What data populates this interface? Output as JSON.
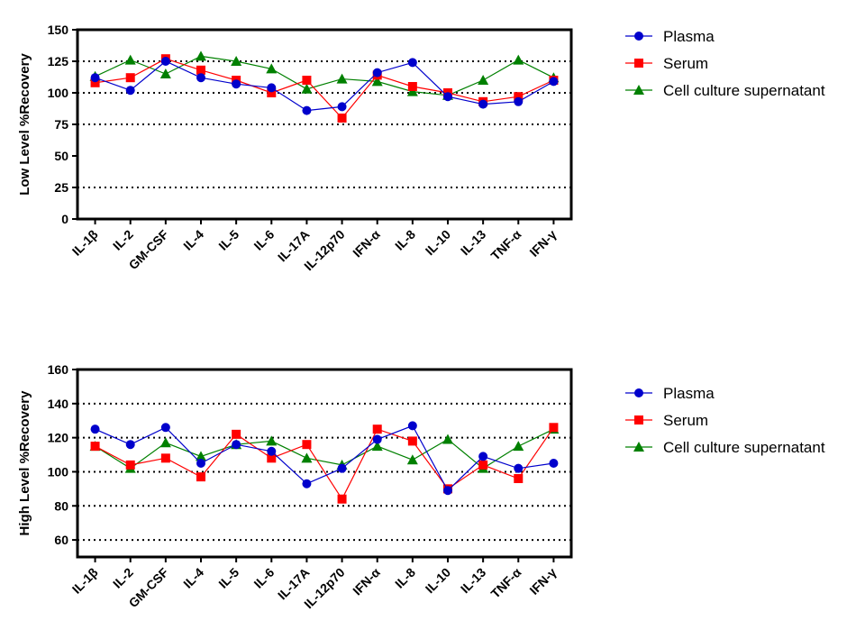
{
  "chart_data": [
    {
      "type": "line",
      "ylabel": "Low Level %Recovery",
      "ylim": [
        0,
        150
      ],
      "yticks": [
        0,
        25,
        50,
        75,
        100,
        125,
        150
      ],
      "gridlines": [
        25,
        75,
        100,
        125
      ],
      "categories": [
        "IL-1β",
        "IL-2",
        "GM-CSF",
        "IL-4",
        "IL-5",
        "IL-6",
        "IL-17A",
        "IL-12p70",
        "IFN-α",
        "IL-8",
        "IL-10",
        "IL-13",
        "TNF-α",
        "IFN-γ"
      ],
      "legend_position": "right",
      "series": [
        {
          "name": "Plasma",
          "color": "#0000cc",
          "marker": "circle",
          "values": [
            112,
            102,
            125,
            112,
            107,
            104,
            86,
            89,
            116,
            124,
            97,
            91,
            93,
            109
          ]
        },
        {
          "name": "Serum",
          "color": "#ff0000",
          "marker": "square",
          "values": [
            108,
            112,
            127,
            118,
            110,
            100,
            110,
            80,
            114,
            105,
            100,
            93,
            97,
            110
          ]
        },
        {
          "name": "Cell culture supernatant",
          "color": "#008000",
          "marker": "triangle",
          "values": [
            113,
            126,
            115,
            129,
            125,
            119,
            103,
            111,
            109,
            101,
            98,
            110,
            126,
            112
          ]
        }
      ]
    },
    {
      "type": "line",
      "ylabel": "High Level %Recovery",
      "ylim": [
        50,
        160
      ],
      "yticks": [
        60,
        80,
        100,
        120,
        140,
        160
      ],
      "gridlines": [
        60,
        80,
        100,
        120,
        140
      ],
      "categories": [
        "IL-1β",
        "IL-2",
        "GM-CSF",
        "IL-4",
        "IL-5",
        "IL-6",
        "IL-17A",
        "IL-12p70",
        "IFN-α",
        "IL-8",
        "IL-10",
        "IL-13",
        "TNF-α",
        "IFN-γ"
      ],
      "legend_position": "right",
      "series": [
        {
          "name": "Plasma",
          "color": "#0000cc",
          "marker": "circle",
          "values": [
            125,
            116,
            126,
            105,
            116,
            112,
            93,
            102,
            119,
            127,
            89,
            109,
            102,
            105
          ]
        },
        {
          "name": "Serum",
          "color": "#ff0000",
          "marker": "square",
          "values": [
            115,
            104,
            108,
            97,
            122,
            108,
            116,
            84,
            125,
            118,
            90,
            104,
            96,
            126
          ]
        },
        {
          "name": "Cell culture supernatant",
          "color": "#008000",
          "marker": "triangle",
          "values": [
            115,
            102,
            117,
            109,
            116,
            118,
            108,
            104,
            115,
            107,
            119,
            102,
            115,
            125
          ]
        }
      ]
    }
  ]
}
